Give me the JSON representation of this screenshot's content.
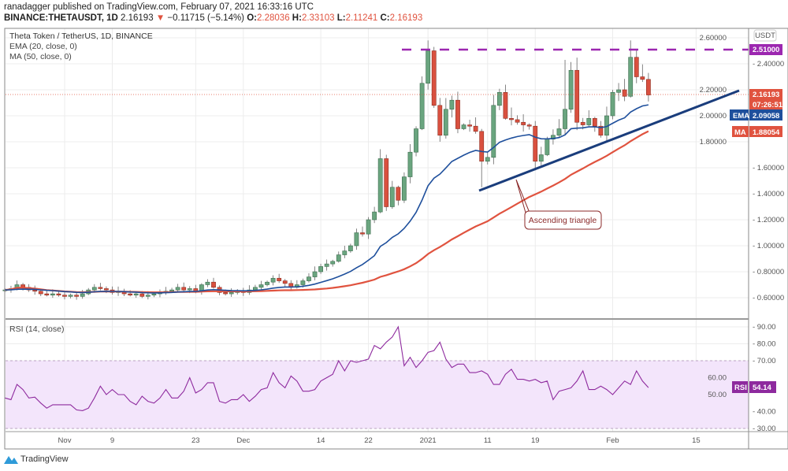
{
  "header": {
    "line1": "ranadagger published on TradingView.com, February 07, 2021 16:33:16 UTC",
    "symbol": "BINANCE:THETAUSDT, 1D",
    "price": "2.16193",
    "change": "−0.11715 (−5.14%)",
    "o_label": "O:",
    "o": "2.28036",
    "h_label": "H:",
    "h": "2.33103",
    "l_label": "L:",
    "l": "2.11241",
    "c_label": "C:",
    "c": "2.16193"
  },
  "legend": {
    "title": "Theta Token / TetherUS, 1D, BINANCE",
    "ema": "EMA (20, close, 0)",
    "ma": "MA (50, close, 0)",
    "rsi": "RSI (14, close)"
  },
  "axis": {
    "currency": "USDT",
    "resistance_label": "2.51000",
    "price_label": "2.16193",
    "countdown": "07:26:51",
    "ema_tag": "EMA",
    "ema_value": "2.09058",
    "ma_tag": "MA",
    "ma_value": "1.88054",
    "rsi_tag": "RSI",
    "rsi_value": "54.14"
  },
  "annotation": "Ascending triangle",
  "logo": "TradingView",
  "colors": {
    "up": "#6aa57f",
    "down": "#d9503f",
    "ema": "#1e4f9c",
    "ma": "#e0533f",
    "resistance": "#9c27b0",
    "rsi": "#8e2a9e",
    "rsi_band": "#f3e5fb"
  },
  "chart_data": [
    {
      "type": "candlestick",
      "title": "Theta Token / TetherUS, 1D, BINANCE",
      "start_date": "2020-10-22",
      "ylim": [
        0.5,
        2.62
      ],
      "y_ticks": [
        "0.60000",
        "0.80000",
        "1.00000",
        "1.20000",
        "1.40000",
        "1.60000",
        "1.80000",
        "2.00000",
        "2.20000",
        "2.40000",
        "2.60000"
      ],
      "x_ticks": [
        {
          "label": "Nov",
          "day": 10
        },
        {
          "label": "9",
          "day": 18
        },
        {
          "label": "23",
          "day": 32
        },
        {
          "label": "Dec",
          "day": 40
        },
        {
          "label": "14",
          "day": 53
        },
        {
          "label": "22",
          "day": 61
        },
        {
          "label": "2021",
          "day": 71
        },
        {
          "label": "11",
          "day": 81
        },
        {
          "label": "19",
          "day": 89
        },
        {
          "label": "Feb",
          "day": 102
        },
        {
          "label": "15",
          "day": 116
        }
      ],
      "close": [
        0.66,
        0.67,
        0.7,
        0.68,
        0.66,
        0.65,
        0.63,
        0.62,
        0.63,
        0.62,
        0.61,
        0.62,
        0.61,
        0.63,
        0.66,
        0.68,
        0.67,
        0.66,
        0.64,
        0.65,
        0.63,
        0.62,
        0.63,
        0.61,
        0.62,
        0.63,
        0.64,
        0.65,
        0.66,
        0.68,
        0.66,
        0.67,
        0.65,
        0.7,
        0.72,
        0.68,
        0.64,
        0.63,
        0.64,
        0.65,
        0.64,
        0.66,
        0.68,
        0.7,
        0.72,
        0.75,
        0.73,
        0.71,
        0.68,
        0.7,
        0.73,
        0.76,
        0.8,
        0.84,
        0.86,
        0.88,
        0.93,
        0.96,
        1.0,
        1.1,
        1.09,
        1.2,
        1.26,
        1.67,
        1.3,
        1.45,
        1.35,
        1.53,
        1.72,
        1.9,
        2.25,
        2.5,
        2.08,
        1.85,
        2.05,
        2.12,
        1.9,
        1.93,
        1.92,
        1.88,
        1.65,
        1.68,
        2.08,
        2.18,
        1.98,
        1.97,
        1.95,
        1.93,
        1.92,
        1.65,
        1.7,
        1.82,
        1.85,
        1.9,
        2.05,
        2.35,
        1.95,
        1.93,
        1.98,
        1.92,
        1.85,
        2.0,
        2.18,
        2.2,
        2.15,
        2.45,
        2.3,
        2.28,
        2.16
      ],
      "wick_overrides": {
        "71": {
          "high": 2.58
        },
        "80": {
          "low": 1.45
        },
        "89": {
          "low": 1.58
        },
        "94": {
          "high": 2.43
        },
        "105": {
          "high": 2.58
        },
        "108": {
          "high": 2.33,
          "low": 2.11
        }
      },
      "resistance": 2.51,
      "ema_period": 20,
      "ma_period": 50
    },
    {
      "type": "line",
      "title": "RSI (14, close)",
      "ylim": [
        27,
        92
      ],
      "y_ticks": [
        "30.00",
        "40.00",
        "50.00",
        "60.00",
        "70.00",
        "80.00",
        "90.00"
      ],
      "band": [
        30,
        70
      ],
      "values": [
        48,
        47,
        56,
        53,
        48,
        48.5,
        45,
        42,
        44,
        44,
        44,
        44,
        41,
        40.5,
        42,
        48,
        55,
        50,
        53,
        50,
        50,
        46,
        44,
        49,
        46,
        45,
        48,
        53,
        48,
        48,
        52,
        60,
        51,
        53,
        57,
        57,
        46,
        45,
        47,
        47,
        50,
        46,
        49,
        53,
        54,
        63,
        57,
        54,
        61,
        58,
        52,
        52,
        53,
        58,
        60,
        62,
        70,
        64,
        70,
        69,
        70,
        71,
        79,
        77,
        81,
        84,
        90,
        67,
        72,
        66,
        70,
        75,
        76,
        81,
        71,
        66,
        68,
        68,
        63,
        63,
        64,
        62,
        56,
        56,
        62,
        65,
        59,
        59,
        58,
        59,
        57,
        58,
        47,
        52,
        53,
        54,
        58,
        64,
        53,
        53,
        55,
        53,
        50,
        54,
        58,
        56,
        64,
        58,
        54.14
      ]
    }
  ]
}
